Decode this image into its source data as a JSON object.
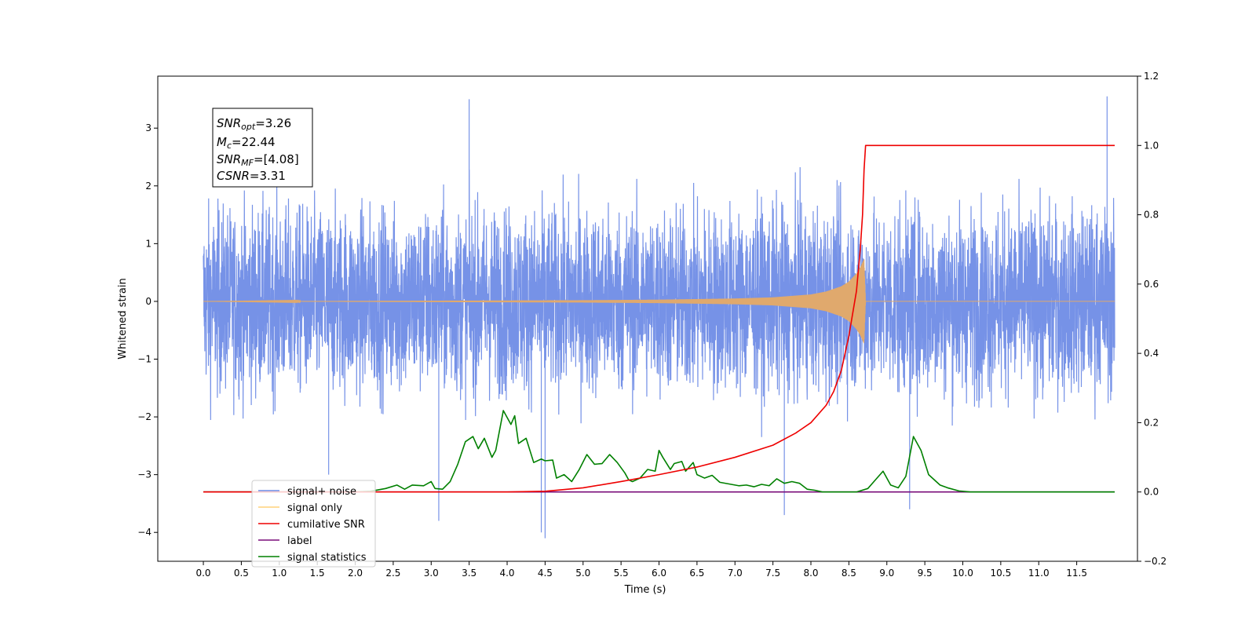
{
  "chart_data": {
    "type": "line",
    "title": "",
    "xlabel": "Time (s)",
    "ylabel": "Whitened strain",
    "y2label": "",
    "xlim": [
      -0.6,
      12.3
    ],
    "ylim": [
      -4.5,
      3.9
    ],
    "y2lim": [
      -0.2,
      1.2
    ],
    "x_ticks": [
      "0.0",
      "0.5",
      "1.0",
      "1.5",
      "2.0",
      "2.5",
      "3.0",
      "3.5",
      "4.0",
      "4.5",
      "5.0",
      "5.5",
      "6.0",
      "6.5",
      "7.0",
      "7.5",
      "8.0",
      "8.5",
      "9.0",
      "9.5",
      "10.0",
      "10.5",
      "11.0",
      "11.5"
    ],
    "y_ticks": [
      "3",
      "2",
      "1",
      "0",
      "−1",
      "−2",
      "−3",
      "−4"
    ],
    "y2_ticks": [
      "1.2",
      "1.0",
      "0.8",
      "0.6",
      "0.4",
      "0.2",
      "0.0",
      "−0.2"
    ],
    "grid": false,
    "legend_placement": "lower-left",
    "series": [
      {
        "name": "signal+ noise",
        "color": "#6f8ce6",
        "axis": "left",
        "x_range": [
          0.0,
          12.0
        ],
        "typical_envelope": [
          -2.0,
          2.2
        ],
        "notable_peaks": [
          [
            4.5,
            -4.1
          ],
          [
            4.45,
            -4.0
          ],
          [
            11.9,
            3.55
          ],
          [
            3.5,
            3.5
          ],
          [
            7.65,
            -3.7
          ],
          [
            1.65,
            -3.0
          ],
          [
            3.1,
            -3.8
          ],
          [
            9.3,
            -3.6
          ]
        ]
      },
      {
        "name": "signal only",
        "color": "#e0a96d",
        "axis": "left",
        "points": [
          [
            0.0,
            0.0
          ],
          [
            5.0,
            0.02
          ],
          [
            6.0,
            0.03
          ],
          [
            7.0,
            0.05
          ],
          [
            7.5,
            0.07
          ],
          [
            8.0,
            0.12
          ],
          [
            8.2,
            0.17
          ],
          [
            8.4,
            0.26
          ],
          [
            8.5,
            0.34
          ],
          [
            8.6,
            0.48
          ],
          [
            8.65,
            0.58
          ],
          [
            8.7,
            0.73
          ],
          [
            8.72,
            0.0
          ],
          [
            12.0,
            0.0
          ]
        ]
      },
      {
        "name": "cumilative SNR",
        "color": "#ee0000",
        "axis": "right",
        "points": [
          [
            0.0,
            0.0
          ],
          [
            3.5,
            0.0
          ],
          [
            4.0,
            0.0
          ],
          [
            4.5,
            0.002
          ],
          [
            5.0,
            0.012
          ],
          [
            5.5,
            0.03
          ],
          [
            6.0,
            0.05
          ],
          [
            6.5,
            0.072
          ],
          [
            7.0,
            0.1
          ],
          [
            7.5,
            0.135
          ],
          [
            7.8,
            0.17
          ],
          [
            8.0,
            0.2
          ],
          [
            8.2,
            0.25
          ],
          [
            8.3,
            0.29
          ],
          [
            8.4,
            0.35
          ],
          [
            8.5,
            0.45
          ],
          [
            8.6,
            0.58
          ],
          [
            8.65,
            0.7
          ],
          [
            8.68,
            0.8
          ],
          [
            8.7,
            0.93
          ],
          [
            8.72,
            1.0
          ],
          [
            12.0,
            1.0
          ]
        ]
      },
      {
        "name": "label",
        "color": "#7a0d7a",
        "axis": "right",
        "points": [
          [
            0.0,
            0.0
          ],
          [
            12.0,
            0.0
          ]
        ]
      },
      {
        "name": "signal statistics",
        "color": "#008000",
        "axis": "right",
        "points": [
          [
            0.0,
            0.0
          ],
          [
            2.0,
            0.0
          ],
          [
            2.2,
            0.002
          ],
          [
            2.4,
            0.01
          ],
          [
            2.55,
            0.02
          ],
          [
            2.65,
            0.008
          ],
          [
            2.75,
            0.02
          ],
          [
            2.9,
            0.018
          ],
          [
            3.0,
            0.03
          ],
          [
            3.05,
            0.01
          ],
          [
            3.15,
            0.008
          ],
          [
            3.25,
            0.03
          ],
          [
            3.35,
            0.08
          ],
          [
            3.45,
            0.145
          ],
          [
            3.55,
            0.16
          ],
          [
            3.62,
            0.125
          ],
          [
            3.7,
            0.155
          ],
          [
            3.8,
            0.1
          ],
          [
            3.85,
            0.12
          ],
          [
            3.95,
            0.235
          ],
          [
            4.05,
            0.195
          ],
          [
            4.1,
            0.22
          ],
          [
            4.15,
            0.14
          ],
          [
            4.25,
            0.155
          ],
          [
            4.35,
            0.085
          ],
          [
            4.45,
            0.095
          ],
          [
            4.5,
            0.09
          ],
          [
            4.6,
            0.092
          ],
          [
            4.65,
            0.04
          ],
          [
            4.75,
            0.05
          ],
          [
            4.85,
            0.03
          ],
          [
            4.95,
            0.065
          ],
          [
            5.05,
            0.108
          ],
          [
            5.15,
            0.08
          ],
          [
            5.25,
            0.082
          ],
          [
            5.35,
            0.108
          ],
          [
            5.45,
            0.085
          ],
          [
            5.55,
            0.055
          ],
          [
            5.6,
            0.035
          ],
          [
            5.65,
            0.03
          ],
          [
            5.75,
            0.04
          ],
          [
            5.85,
            0.065
          ],
          [
            5.95,
            0.06
          ],
          [
            6.0,
            0.12
          ],
          [
            6.05,
            0.1
          ],
          [
            6.15,
            0.065
          ],
          [
            6.2,
            0.082
          ],
          [
            6.3,
            0.088
          ],
          [
            6.35,
            0.06
          ],
          [
            6.45,
            0.085
          ],
          [
            6.5,
            0.05
          ],
          [
            6.6,
            0.04
          ],
          [
            6.7,
            0.048
          ],
          [
            6.8,
            0.028
          ],
          [
            6.95,
            0.022
          ],
          [
            7.05,
            0.018
          ],
          [
            7.15,
            0.02
          ],
          [
            7.25,
            0.015
          ],
          [
            7.35,
            0.022
          ],
          [
            7.45,
            0.018
          ],
          [
            7.55,
            0.038
          ],
          [
            7.65,
            0.025
          ],
          [
            7.75,
            0.03
          ],
          [
            7.85,
            0.025
          ],
          [
            7.95,
            0.008
          ],
          [
            8.05,
            0.005
          ],
          [
            8.15,
            0.0
          ],
          [
            8.5,
            0.0
          ],
          [
            8.6,
            0.0
          ],
          [
            8.75,
            0.01
          ],
          [
            8.85,
            0.035
          ],
          [
            8.95,
            0.06
          ],
          [
            9.05,
            0.02
          ],
          [
            9.15,
            0.012
          ],
          [
            9.25,
            0.045
          ],
          [
            9.35,
            0.16
          ],
          [
            9.45,
            0.12
          ],
          [
            9.55,
            0.05
          ],
          [
            9.7,
            0.02
          ],
          [
            9.8,
            0.012
          ],
          [
            9.95,
            0.003
          ],
          [
            10.1,
            0.0
          ],
          [
            12.0,
            0.0
          ]
        ]
      }
    ],
    "annotation": {
      "snr_opt_label": "SNR",
      "snr_opt_sub": "opt",
      "snr_opt_value": "=3.26",
      "mc_label": "M",
      "mc_sub": "c",
      "mc_value": "=22.44",
      "snr_mf_label": "SNR",
      "snr_mf_sub": "MF",
      "snr_mf_value": "=[4.08]",
      "csnr_label": "CSNR",
      "csnr_value": "=3.31"
    },
    "legend_entries": [
      "signal+ noise",
      "signal only",
      "cumilative SNR",
      "label",
      "signal statistics"
    ]
  }
}
